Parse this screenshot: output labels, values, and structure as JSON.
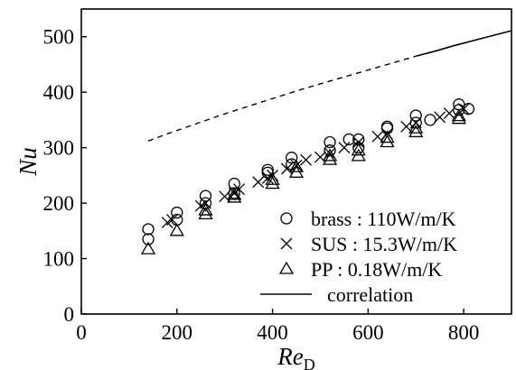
{
  "chart_data": {
    "type": "scatter",
    "title": "",
    "xlabel": "Re",
    "xlabel_subscript": "D",
    "ylabel": "Nu",
    "xlim": [
      0,
      900
    ],
    "ylim": [
      0,
      550
    ],
    "x_ticks": [
      0,
      200,
      400,
      600,
      800
    ],
    "y_ticks": [
      0,
      100,
      200,
      300,
      400,
      500
    ],
    "grid": false,
    "legend_position": "bottom-right",
    "series": [
      {
        "name": "brass : 110W/m/K",
        "marker": "circle",
        "points": [
          [
            140,
            135
          ],
          [
            140,
            153
          ],
          [
            200,
            170
          ],
          [
            200,
            183
          ],
          [
            260,
            200
          ],
          [
            260,
            213
          ],
          [
            320,
            218
          ],
          [
            320,
            235
          ],
          [
            390,
            255
          ],
          [
            390,
            260
          ],
          [
            440,
            270
          ],
          [
            440,
            282
          ],
          [
            520,
            295
          ],
          [
            520,
            310
          ],
          [
            560,
            315
          ],
          [
            580,
            300
          ],
          [
            580,
            315
          ],
          [
            640,
            335
          ],
          [
            640,
            338
          ],
          [
            700,
            345
          ],
          [
            700,
            358
          ],
          [
            730,
            350
          ],
          [
            790,
            368
          ],
          [
            790,
            378
          ],
          [
            810,
            370
          ]
        ]
      },
      {
        "name": "SUS : 15.3W/m/K",
        "marker": "x",
        "points": [
          [
            180,
            165
          ],
          [
            190,
            170
          ],
          [
            250,
            195
          ],
          [
            260,
            200
          ],
          [
            300,
            212
          ],
          [
            320,
            218
          ],
          [
            330,
            225
          ],
          [
            370,
            238
          ],
          [
            390,
            245
          ],
          [
            400,
            250
          ],
          [
            430,
            262
          ],
          [
            450,
            268
          ],
          [
            470,
            278
          ],
          [
            500,
            283
          ],
          [
            520,
            290
          ],
          [
            550,
            300
          ],
          [
            580,
            310
          ],
          [
            620,
            320
          ],
          [
            640,
            325
          ],
          [
            680,
            338
          ],
          [
            700,
            345
          ],
          [
            750,
            355
          ],
          [
            770,
            362
          ],
          [
            800,
            370
          ]
        ]
      },
      {
        "name": "PP :  0.18W/m/K",
        "marker": "triangle",
        "points": [
          [
            140,
            117
          ],
          [
            200,
            150
          ],
          [
            260,
            180
          ],
          [
            260,
            187
          ],
          [
            320,
            210
          ],
          [
            320,
            215
          ],
          [
            400,
            235
          ],
          [
            400,
            242
          ],
          [
            450,
            255
          ],
          [
            450,
            265
          ],
          [
            520,
            278
          ],
          [
            520,
            285
          ],
          [
            580,
            285
          ],
          [
            580,
            295
          ],
          [
            640,
            310
          ],
          [
            640,
            318
          ],
          [
            700,
            328
          ],
          [
            700,
            335
          ],
          [
            790,
            352
          ],
          [
            790,
            357
          ]
        ]
      },
      {
        "name": "correlation",
        "style": "line",
        "x": [
          140,
          180,
          220,
          260,
          300,
          340,
          380,
          420,
          460,
          500,
          540,
          580,
          620,
          660,
          700,
          740,
          780,
          820,
          860,
          900
        ],
        "y": [
          312,
          325,
          337,
          349,
          361,
          372,
          383,
          394,
          405,
          415,
          425,
          435,
          445,
          455,
          465,
          474,
          484,
          493,
          502,
          511
        ],
        "dashed_below_x": 700
      }
    ]
  }
}
